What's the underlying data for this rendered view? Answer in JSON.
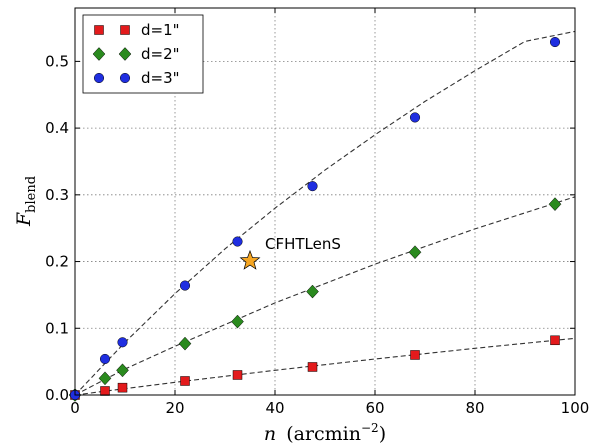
{
  "chart_data": {
    "type": "scatter",
    "title": "",
    "xlabel": {
      "base": "n",
      "units": "(arcmin",
      "exponent": "−2",
      "close": ")"
    },
    "ylabel": {
      "base": "F",
      "subscript": "blend"
    },
    "xlim": [
      0,
      100
    ],
    "ylim": [
      0,
      0.58
    ],
    "xticks": [
      0,
      20,
      40,
      60,
      80,
      100
    ],
    "yticks": [
      0.0,
      0.1,
      0.2,
      0.3,
      0.4,
      0.5
    ],
    "ytick_labels": [
      "0.0",
      "0.1",
      "0.2",
      "0.3",
      "0.4",
      "0.5"
    ],
    "grid": true,
    "legend_position": "top-left",
    "series": [
      {
        "name": "d=1\"",
        "marker": "square",
        "color": "#e31a1c",
        "x": [
          0,
          6,
          9.5,
          22,
          32.5,
          47.5,
          68,
          96
        ],
        "y": [
          0.0,
          0.006,
          0.011,
          0.021,
          0.03,
          0.042,
          0.06,
          0.082
        ],
        "fit": {
          "x": [
            0,
            20,
            40,
            60,
            80,
            100
          ],
          "y": [
            0.0,
            0.019,
            0.037,
            0.054,
            0.07,
            0.085
          ]
        }
      },
      {
        "name": "d=2\"",
        "marker": "diamond",
        "color": "#2a8a1e",
        "x": [
          0,
          6,
          9.5,
          22,
          32.5,
          47.5,
          68,
          96
        ],
        "y": [
          0.0,
          0.025,
          0.037,
          0.077,
          0.11,
          0.155,
          0.214,
          0.286
        ],
        "fit": {
          "x": [
            0,
            10,
            20,
            40,
            60,
            80,
            100
          ],
          "y": [
            0.0,
            0.039,
            0.073,
            0.138,
            0.196,
            0.249,
            0.297
          ]
        }
      },
      {
        "name": "d=3\"",
        "marker": "circle",
        "color": "#1f2ee0",
        "x": [
          0,
          6,
          9.5,
          22,
          32.5,
          47.5,
          68,
          96
        ],
        "y": [
          0.0,
          0.054,
          0.079,
          0.164,
          0.23,
          0.313,
          0.416,
          0.529
        ],
        "fit": {
          "x": [
            0,
            10,
            20,
            30,
            40,
            50,
            60,
            70,
            80,
            90,
            100
          ],
          "y": [
            0.0,
            0.079,
            0.152,
            0.219,
            0.28,
            0.337,
            0.39,
            0.44,
            0.486,
            0.53,
            0.545
          ]
        }
      }
    ],
    "annotations": [
      {
        "label": "CFHTLenS",
        "x": 35,
        "y": 0.201,
        "marker": "star",
        "color": "#f5a623"
      }
    ]
  }
}
